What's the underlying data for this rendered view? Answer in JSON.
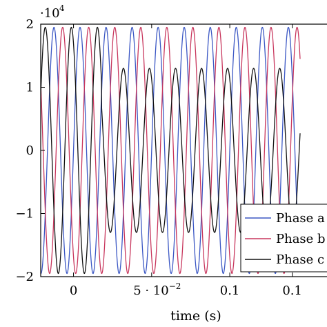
{
  "chart_data": {
    "type": "line",
    "title": "",
    "xlabel": "time (s)",
    "ylabel": "",
    "y_multiplier": "·10",
    "y_multiplier_exponent": "4",
    "xlim": [
      -0.021,
      0.145
    ],
    "ylim": [
      -20000,
      20000
    ],
    "x_ticks": [
      {
        "value": 0,
        "label": "0"
      },
      {
        "value": 0.05,
        "label": "5 · 10",
        "exp": "−2"
      },
      {
        "value": 0.1,
        "label": "0.1"
      },
      {
        "value": 0.14,
        "label": "0.1"
      }
    ],
    "y_ticks": [
      {
        "value": -20000,
        "label": "−2"
      },
      {
        "value": -10000,
        "label": "−1"
      },
      {
        "value": 0,
        "label": "0"
      },
      {
        "value": 10000,
        "label": "1"
      },
      {
        "value": 20000,
        "label": "2"
      }
    ],
    "grid": false,
    "legend_position": "bottom-right",
    "signal_frequency_hz": 60,
    "transient_end_s": 0.018,
    "series": [
      {
        "name": "Phase a",
        "color": "#3b57c4",
        "phase_deg": 0,
        "amplitude_before": 19500,
        "amplitude_after": 19500,
        "x_start": -0.021,
        "x_end": 0.145
      },
      {
        "name": "Phase b",
        "color": "#c8365d",
        "phase_deg": -120,
        "amplitude_before": 19500,
        "amplitude_after": 19500,
        "x_start": -0.021,
        "x_end": 0.145
      },
      {
        "name": "Phase c",
        "color": "#111111",
        "phase_deg": 120,
        "amplitude_before": 19500,
        "amplitude_after": 13000,
        "x_start": -0.021,
        "x_end": 0.145
      }
    ]
  }
}
